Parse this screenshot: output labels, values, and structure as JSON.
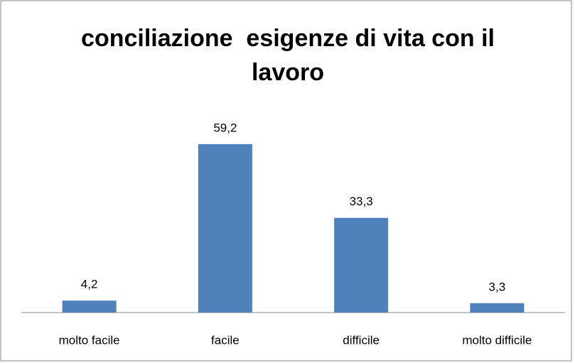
{
  "chart_data": {
    "type": "bar",
    "title": "conciliazione  esigenze di vita con il lavoro",
    "categories": [
      "molto facile",
      "facile",
      "difficile",
      "molto difficile"
    ],
    "values": [
      4.2,
      59.2,
      33.3,
      3.3
    ],
    "value_labels": [
      "4,2",
      "59,2",
      "33,3",
      "3,3"
    ],
    "color": "#4f81bd"
  }
}
